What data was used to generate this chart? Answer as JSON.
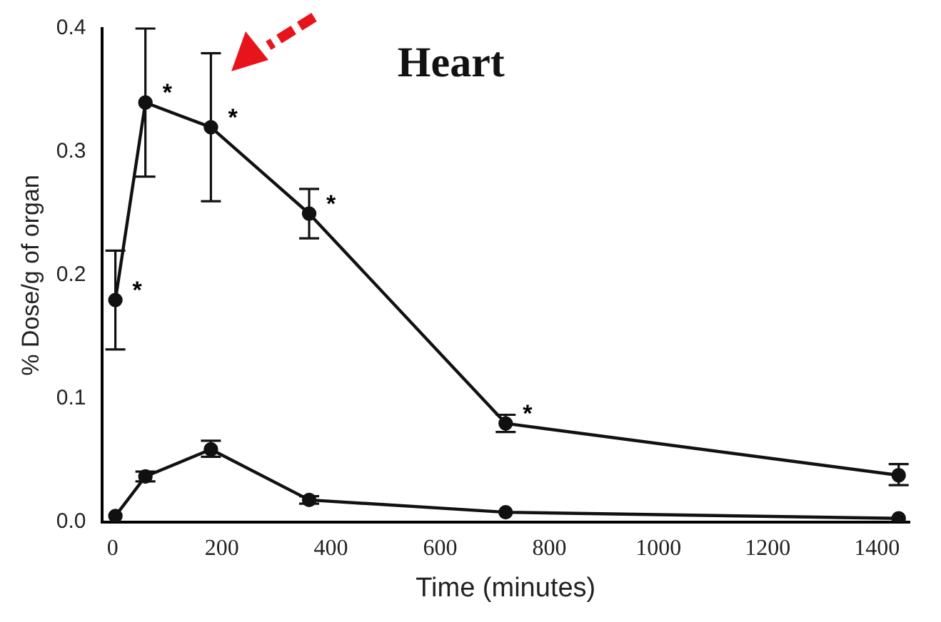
{
  "chart_data": {
    "type": "line",
    "title": "Heart",
    "xlabel": "Time (minutes)",
    "ylabel": "% Dose/g of organ",
    "xlim": [
      -20,
      1460
    ],
    "xticks": [
      0,
      200,
      400,
      600,
      800,
      1000,
      1200,
      1400
    ],
    "ylim": [
      0,
      0.4
    ],
    "yticks": [
      {
        "value": 0,
        "label": "0.0"
      },
      0.1,
      0.2,
      0.3,
      0.4
    ],
    "grid": false,
    "legend": false,
    "marker": "circle",
    "line_style": "solid",
    "series": [
      {
        "color": "#111111",
        "x": [
          5,
          60,
          180,
          360,
          720,
          1440
        ],
        "values": [
          0.18,
          0.34,
          0.32,
          0.25,
          0.08,
          0.038
        ],
        "errors": [
          [
            0.14,
            0.22
          ],
          [
            0.28,
            0.4
          ],
          [
            0.26,
            0.38
          ],
          [
            0.23,
            0.27
          ],
          [
            0.073,
            0.087
          ],
          [
            0.03,
            0.047
          ]
        ]
      },
      {
        "color": "#111111",
        "x": [
          5,
          60,
          180,
          360,
          720,
          1440
        ],
        "values": [
          0.005,
          0.037,
          0.059,
          0.018,
          0.008,
          0.003
        ],
        "errors": [
          null,
          [
            0.033,
            0.041
          ],
          [
            0.053,
            0.066
          ],
          [
            0.015,
            0.021
          ],
          null,
          null
        ]
      }
    ],
    "annotations": [
      {
        "text": "*",
        "x": 5,
        "y": 0.18
      },
      {
        "text": "*",
        "x": 60,
        "y": 0.34
      },
      {
        "text": "*",
        "x": 180,
        "y": 0.32
      },
      {
        "text": "*",
        "x": 360,
        "y": 0.25
      },
      {
        "text": "*",
        "x": 720,
        "y": 0.08
      }
    ]
  }
}
